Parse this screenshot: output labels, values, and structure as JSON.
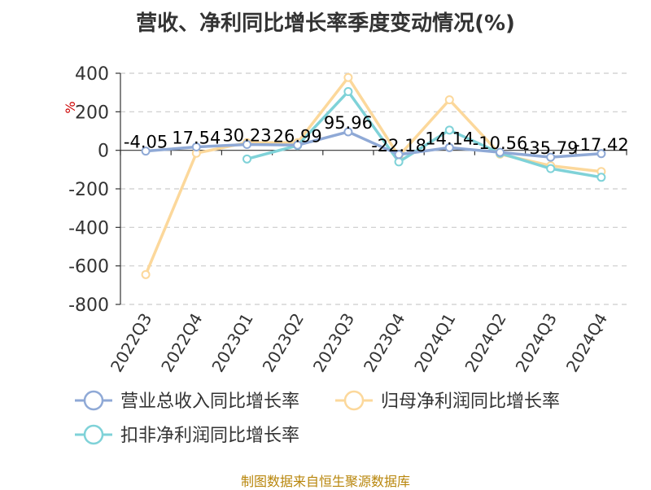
{
  "title": "营收、净利同比增长率季度变动情况(%)",
  "footer": "制图数据来自恒生聚源数据库",
  "colors": {
    "revenue": "#8fa9d6",
    "net_profit": "#fcd89b",
    "deducted": "#7fd2d8",
    "grid": "#cccccc",
    "axis": "#333333"
  },
  "chart_data": {
    "type": "line",
    "title": "营收、净利同比增长率季度变动情况(%)",
    "ylabel": "%",
    "ylim": [
      -800,
      400
    ],
    "yticks": [
      400,
      200,
      0,
      -200,
      -400,
      -600,
      -800
    ],
    "grid": true,
    "legend_position": "bottom",
    "categories": [
      "2022Q3",
      "2022Q4",
      "2023Q1",
      "2023Q2",
      "2023Q3",
      "2023Q4",
      "2024Q1",
      "2024Q2",
      "2024Q3",
      "2024Q4"
    ],
    "series": [
      {
        "name": "营业总收入同比增长率",
        "color_key": "revenue",
        "values": [
          -4.05,
          17.54,
          30.23,
          26.99,
          95.96,
          -22.18,
          14.14,
          -10.56,
          -35.79,
          -17.42
        ],
        "labels": [
          "-4.05",
          "17.54",
          "30.23",
          "26.99",
          "95.96",
          "-22.18",
          "14.14",
          "-10.56",
          "-35.79",
          "-17.42"
        ]
      },
      {
        "name": "归母净利润同比增长率",
        "color_key": "net_profit",
        "values": [
          -645,
          -15,
          40,
          40,
          378,
          -30,
          262,
          -20,
          -80,
          -110
        ]
      },
      {
        "name": "扣非净利润同比增长率",
        "color_key": "deducted",
        "values": [
          null,
          null,
          -45,
          25,
          305,
          -60,
          105,
          -15,
          -95,
          -140
        ]
      }
    ]
  }
}
